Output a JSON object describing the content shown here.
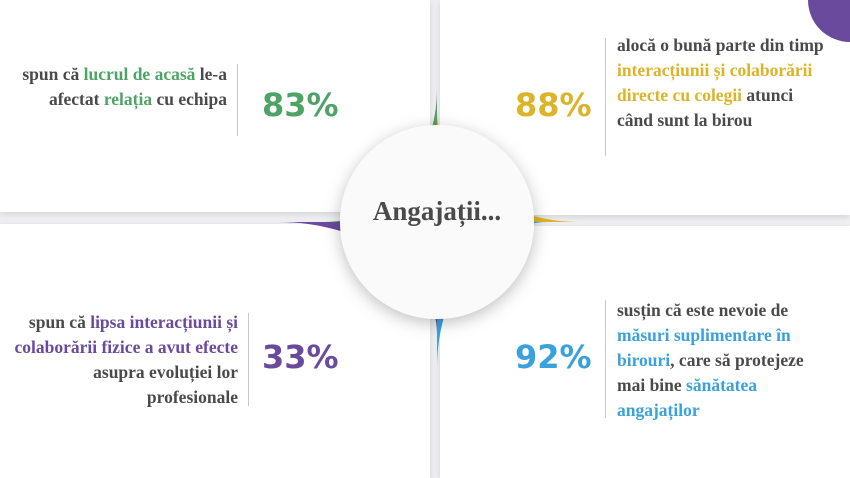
{
  "center_label": "Angajații...",
  "items": [
    {
      "percent": "83%",
      "color": "#4ea466",
      "segments": [
        {
          "text": "spun că "
        },
        {
          "text": "lucrul de acasă",
          "highlight": true
        },
        {
          "text": " le-a afectat "
        },
        {
          "text": "relația",
          "highlight": true
        },
        {
          "text": " cu echipa"
        }
      ]
    },
    {
      "percent": "88%",
      "color": "#dcb428",
      "segments": [
        {
          "text": "alocă o bună parte din timp "
        },
        {
          "text": "interacțiunii și colaborării directe cu colegii",
          "highlight": true
        },
        {
          "text": " atunci când sunt la birou"
        }
      ]
    },
    {
      "percent": "33%",
      "color": "#6a4a9c",
      "segments": [
        {
          "text": "spun că "
        },
        {
          "text": "lipsa interacțiunii și colaborării fizice a avut efecte",
          "highlight": true
        },
        {
          "text": " asupra evoluției lor profesionale"
        }
      ]
    },
    {
      "percent": "92%",
      "color": "#3aa1dc",
      "segments": [
        {
          "text": "susțin că este nevoie de "
        },
        {
          "text": "măsuri suplimentare în birouri",
          "highlight": true
        },
        {
          "text": ", care să protejeze mai bine "
        },
        {
          "text": "sănătatea angajaților",
          "highlight": true
        }
      ]
    }
  ]
}
